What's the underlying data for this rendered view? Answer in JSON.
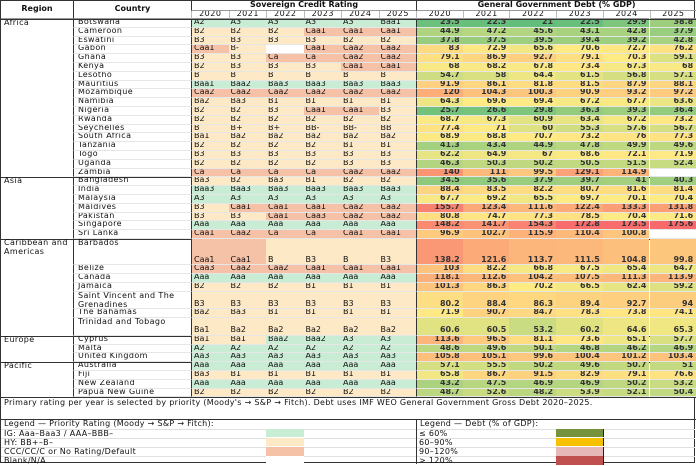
{
  "header": {
    "region": "Region",
    "country": "Country",
    "rating_group": "Sovereign Credit Rating",
    "debt_group": "General Government Debt (% GDP)",
    "years": [
      "2020",
      "2021",
      "2022",
      "2023",
      "2024",
      "2025"
    ]
  },
  "regions": [
    {
      "name": "Africa",
      "countries": [
        {
          "name": "Botswana",
          "ratings": [
            "A2",
            "A3",
            "A3",
            "A3",
            "A3",
            "Baa1"
          ],
          "debt": [
            23.5,
            22.3,
            21,
            22.5,
            29.9,
            38.8
          ]
        },
        {
          "name": "Cameroon",
          "ratings": [
            "B2",
            "B2",
            "B2",
            "Caa1",
            "Caa1",
            "Caa1"
          ],
          "debt": [
            44.9,
            47.2,
            45.6,
            43.1,
            42.8,
            37.9
          ]
        },
        {
          "name": "Eswatini",
          "ratings": [
            "B3",
            "B3",
            "B3",
            "B3",
            "B2",
            "B2"
          ],
          "debt": [
            37.8,
            37.5,
            39.5,
            39.4,
            39.2,
            42.8
          ]
        },
        {
          "name": "Gabon",
          "ratings": [
            "Caa1",
            "B-",
            "",
            "Caa1",
            "Caa2",
            "Caa2"
          ],
          "debt": [
            83,
            72.9,
            65.6,
            70.6,
            72.7,
            76.2
          ]
        },
        {
          "name": "Ghana",
          "ratings": [
            "B3",
            "B3",
            "Ca",
            "Ca",
            "Caa2",
            "Caa2"
          ],
          "debt": [
            79.1,
            86.9,
            92.7,
            79.1,
            70.3,
            59.1
          ]
        },
        {
          "name": "Kenya",
          "ratings": [
            "B2",
            "B3",
            "B3",
            "B3",
            "Caa1",
            "Caa1"
          ],
          "debt": [
            68,
            68.2,
            67.8,
            73.4,
            67.3,
            68
          ]
        },
        {
          "name": "Lesotho",
          "ratings": [
            "B",
            "B",
            "B",
            "B",
            "B",
            "B"
          ],
          "debt": [
            54.7,
            58,
            64.4,
            61.5,
            56.8,
            57.1
          ]
        },
        {
          "name": "Mauritius",
          "ratings": [
            "Baa1",
            "Baa2",
            "Baa3",
            "Baa3",
            "Baa3",
            "Baa3"
          ],
          "debt": [
            91.9,
            86.1,
            81.8,
            81.5,
            87.9,
            88.1
          ]
        },
        {
          "name": "Mozambique",
          "ratings": [
            "Caa2",
            "Caa2",
            "Caa2",
            "Caa2",
            "Caa2",
            "Caa2"
          ],
          "debt": [
            120,
            104.3,
            100.3,
            90.9,
            93.2,
            97.2
          ]
        },
        {
          "name": "Namibia",
          "ratings": [
            "Ba2",
            "Ba3",
            "B1",
            "B1",
            "B1",
            "B1"
          ],
          "debt": [
            64.3,
            69.6,
            69.4,
            67.2,
            67.7,
            63.6
          ]
        },
        {
          "name": "Nigeria",
          "ratings": [
            "B2",
            "B2",
            "B3",
            "Caa1",
            "Caa1",
            "B3"
          ],
          "debt": [
            25.7,
            26.6,
            29.8,
            36.3,
            39.3,
            36.4
          ]
        },
        {
          "name": "Rwanda",
          "ratings": [
            "B2",
            "B2",
            "B2",
            "B2",
            "B2",
            "B2"
          ],
          "debt": [
            68.7,
            67.3,
            60.9,
            63.4,
            67.2,
            73.2
          ]
        },
        {
          "name": "Seychelles",
          "ratings": [
            "B",
            "B+",
            "B+",
            "BB-",
            "BB-",
            "BB"
          ],
          "debt": [
            77.4,
            71,
            60,
            55.3,
            57.6,
            56.7
          ]
        },
        {
          "name": "South Africa",
          "ratings": [
            "Ba1",
            "Ba2",
            "Ba2",
            "Ba2",
            "Ba2",
            "Ba2"
          ],
          "debt": [
            68.9,
            68.8,
            70.7,
            73.2,
            76,
            77.3
          ]
        },
        {
          "name": "Tanzania",
          "ratings": [
            "B2",
            "B2",
            "B2",
            "B2",
            "B1",
            "B1"
          ],
          "debt": [
            41.3,
            43.4,
            44.9,
            47.8,
            49.9,
            49.6
          ]
        },
        {
          "name": "Togo",
          "ratings": [
            "B3",
            "B3",
            "B3",
            "B3",
            "B3",
            "B3"
          ],
          "debt": [
            62.2,
            64.9,
            67,
            68.6,
            72.1,
            71.9
          ]
        },
        {
          "name": "Uganda",
          "ratings": [
            "B2",
            "B2",
            "B2",
            "B2",
            "B3",
            "B3"
          ],
          "debt": [
            46.3,
            50.3,
            50.2,
            50.5,
            51.5,
            52.4
          ]
        },
        {
          "name": "Zambia",
          "ratings": [
            "Ca",
            "Ca",
            "Ca",
            "Ca",
            "Caa2",
            "Caa2"
          ],
          "debt": [
            140,
            111,
            99.5,
            129.1,
            114.9,
            null
          ]
        }
      ]
    },
    {
      "name": "Asia",
      "countries": [
        {
          "name": "Bangladesh",
          "ratings": [
            "Ba3",
            "B2",
            "Ba3",
            "B1",
            "B2",
            "B2"
          ],
          "debt": [
            34.5,
            35.6,
            37.9,
            39.7,
            41,
            40.3
          ]
        },
        {
          "name": "India",
          "ratings": [
            "Baa3",
            "Baa3",
            "Baa3",
            "Baa3",
            "Baa3",
            "Baa3"
          ],
          "debt": [
            88.4,
            83.5,
            82.2,
            80.7,
            81.6,
            81.4
          ]
        },
        {
          "name": "Malaysia",
          "ratings": [
            "A3",
            "A3",
            "A3",
            "A3",
            "A3",
            "A3"
          ],
          "debt": [
            67.7,
            69.2,
            65.5,
            69.7,
            70.1,
            70.4
          ]
        },
        {
          "name": "Maldives",
          "ratings": [
            "B3",
            "Caa1",
            "Caa1",
            "Caa1",
            "Caa2",
            "Caa2"
          ],
          "debt": [
            155.7,
            123.4,
            111.6,
            122.4,
            133.3,
            131.8
          ]
        },
        {
          "name": "Pakistan",
          "ratings": [
            "B3",
            "B3",
            "Caa1",
            "Caa3",
            "Caa2",
            "Caa2"
          ],
          "debt": [
            80.8,
            74.7,
            77.3,
            78.5,
            70.4,
            71.6
          ]
        },
        {
          "name": "Singapore",
          "ratings": [
            "Aaa",
            "Aaa",
            "Aaa",
            "Aaa",
            "Aaa",
            "Aaa"
          ],
          "debt": [
            148.2,
            141.7,
            154.3,
            172.8,
            173.5,
            175.6
          ]
        },
        {
          "name": "Sri Lanka",
          "ratings": [
            "Caa1",
            "Caa2",
            "Ca",
            "Ca",
            "Caa1",
            "Caa1"
          ],
          "debt": [
            96.9,
            102.7,
            115.9,
            110.4,
            100.8,
            null
          ]
        }
      ]
    },
    {
      "name": "Caribbean and Americas",
      "countries": [
        {
          "name": "Barbados",
          "lines": 3,
          "ratings": [
            "Caa1",
            "Caa1",
            "B",
            "B3",
            "B",
            "B3"
          ],
          "debt": [
            138.2,
            121.6,
            113.7,
            111.5,
            104.8,
            99.8
          ]
        },
        {
          "name": "Belize",
          "ratings": [
            "Caa3",
            "Caa2",
            "Caa2",
            "Caa1",
            "Caa1",
            "Caa1"
          ],
          "debt": [
            103,
            82.2,
            66.8,
            67.5,
            65.4,
            64.7
          ]
        },
        {
          "name": "Canada",
          "ratings": [
            "Aaa",
            "Aaa",
            "Aaa",
            "Aaa",
            "Aaa",
            "Aaa"
          ],
          "debt": [
            118.1,
            112.6,
            104.2,
            107.5,
            111.3,
            113.9
          ]
        },
        {
          "name": "Jamaica",
          "ratings": [
            "B2",
            "B2",
            "B2",
            "B1",
            "B1",
            "B1"
          ],
          "debt": [
            101.3,
            86.3,
            70.2,
            66.5,
            62.4,
            59.2
          ]
        },
        {
          "name": "Saint Vincent and The Grenadines",
          "lines": 2,
          "ratings": [
            "B3",
            "B3",
            "B3",
            "B3",
            "B3",
            "B3"
          ],
          "debt": [
            80.2,
            88.4,
            86.3,
            89.4,
            92.7,
            94
          ]
        },
        {
          "name": "The Bahamas",
          "ratings": [
            "Ba2",
            "Ba3",
            "B1",
            "B1",
            "B1",
            "B1"
          ],
          "debt": [
            71.9,
            90.7,
            84.7,
            78.3,
            73.8,
            74.1
          ]
        },
        {
          "name": "Trinidad and Tobago",
          "lines": 2,
          "ratings": [
            "Ba1",
            "Ba2",
            "Ba2",
            "Ba2",
            "Ba2",
            "Ba2"
          ],
          "debt": [
            60.6,
            60.5,
            53.2,
            60.2,
            64.6,
            65.3
          ]
        }
      ]
    },
    {
      "name": "Europe",
      "countries": [
        {
          "name": "Cyprus",
          "ratings": [
            "Ba1",
            "Ba1",
            "Baa2",
            "Baa2",
            "A3",
            "A3"
          ],
          "debt": [
            113.6,
            96.5,
            81.1,
            73.6,
            65.1,
            57.7
          ]
        },
        {
          "name": "Malta",
          "ratings": [
            "A2",
            "A2",
            "A2",
            "A2",
            "A2",
            "A2"
          ],
          "debt": [
            48.6,
            49.6,
            50.1,
            46.8,
            46.2,
            46.9
          ]
        },
        {
          "name": "United Kingdom",
          "ratings": [
            "Aa3",
            "Aa3",
            "Aa3",
            "Aa3",
            "Aa3",
            "Aa3"
          ],
          "debt": [
            105.8,
            105.1,
            99.6,
            100.4,
            101.2,
            103.4
          ]
        }
      ]
    },
    {
      "name": "Pacific",
      "countries": [
        {
          "name": "Australia",
          "ratings": [
            "Aaa",
            "Aaa",
            "Aaa",
            "Aaa",
            "Aaa",
            "Aaa"
          ],
          "debt": [
            57.1,
            55.5,
            50.2,
            49.6,
            50.7,
            51
          ]
        },
        {
          "name": "Fiji",
          "ratings": [
            "Ba3",
            "B1",
            "B1",
            "B1",
            "B1",
            "B1"
          ],
          "debt": [
            65.8,
            86.7,
            91.5,
            82.9,
            79.1,
            76.6
          ]
        },
        {
          "name": "New Zealand",
          "ratings": [
            "Aaa",
            "Aaa",
            "Aaa",
            "Aaa",
            "Aaa",
            "Aaa"
          ],
          "debt": [
            43.2,
            47.5,
            46.9,
            46.9,
            50.2,
            53.2
          ]
        },
        {
          "name": "Papua New Guine",
          "ratings": [
            "B2",
            "B2",
            "B2",
            "B2",
            "B2",
            "B2"
          ],
          "debt": [
            48.7,
            52.6,
            48.2,
            53.9,
            52.1,
            50.4
          ]
        }
      ]
    }
  ],
  "footer": {
    "note": "Primary rating per year is selected by priority (Moody's → S&P → Fitch). Debt uses IMF WEO General Government Gross Debt 2020–2025.",
    "rating_legend": {
      "title": "Legend — Priority Rating (Moody → S&P → Fitch):",
      "items": [
        {
          "label": "IG: Aaa–Baa3 / AAA–BBB–",
          "color": "#c8ecd4"
        },
        {
          "label": "HY: BB+–B–",
          "color": "#fde9c6"
        },
        {
          "label": "CCC/CC/C or No Rating/Default",
          "color": "#f5c2a8"
        },
        {
          "label": "Blank/N/A",
          "color": "#ffffff"
        }
      ]
    },
    "debt_legend": {
      "title": "Legend — Debt (% of GDP):",
      "items": [
        {
          "label": "≤ 60%",
          "color": "#76923c"
        },
        {
          "label": "60–90%",
          "color": "#f7c000"
        },
        {
          "label": "90–120%",
          "color": "#e6b8b7"
        },
        {
          "label": "> 120%",
          "color": "#c0504d"
        }
      ]
    }
  },
  "colors": {
    "rating_ig": "#c8ecd4",
    "rating_hy": "#fde9c6",
    "rating_ccc": "#f5c2a8",
    "debt_low": "#63be7b",
    "debt_mid": "#ffeb84",
    "debt_high": "#f8696b"
  }
}
